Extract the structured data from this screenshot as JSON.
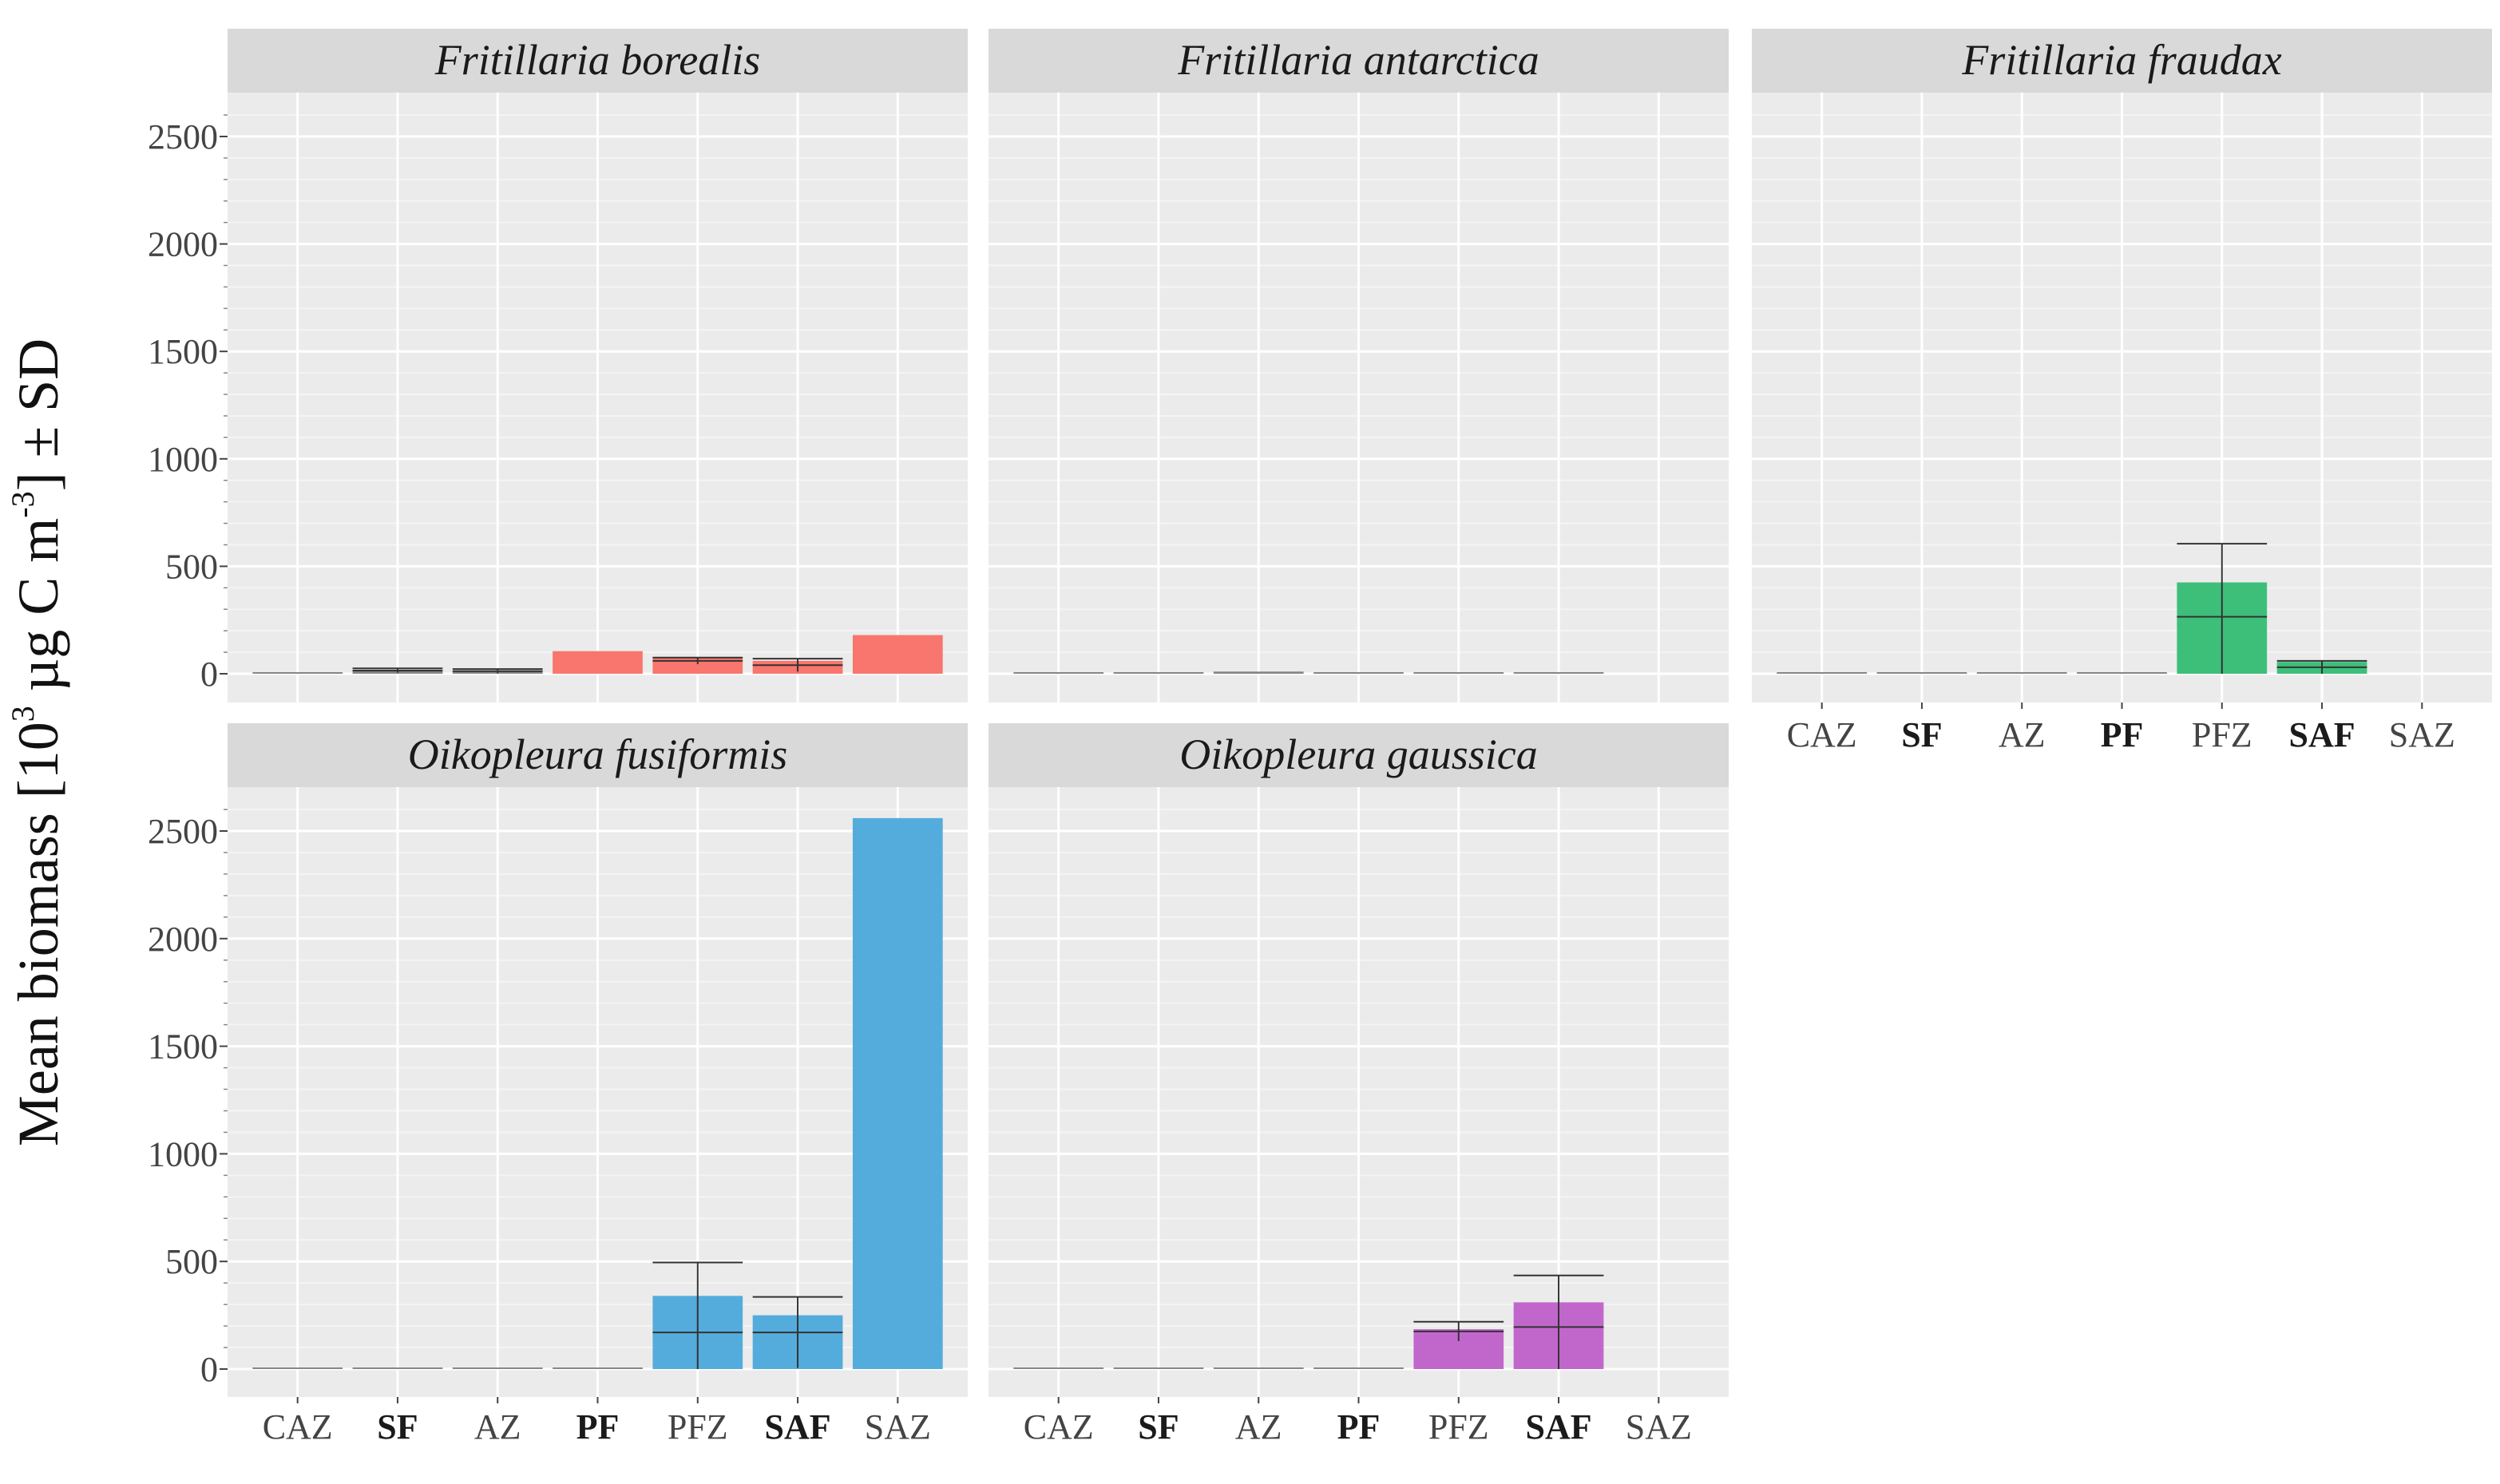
{
  "chart_data": {
    "type": "bar",
    "ylabel": {
      "main": "Mean biomass [10",
      "exp1": "3",
      "unit": " µg C m",
      "exp2": "-3",
      "tail": "]  ± SD"
    },
    "ylim": [
      0,
      2600
    ],
    "y_ticks": [
      0,
      500,
      1000,
      1500,
      2000,
      2500
    ],
    "y_tick_labels": [
      "0",
      "500",
      "1000",
      "1500",
      "2000",
      "2500"
    ],
    "categories": [
      "CAZ",
      "SF",
      "AZ",
      "PF",
      "PFZ",
      "SAF",
      "SAZ"
    ],
    "bold_categories": [
      "SF",
      "PF",
      "SAF"
    ],
    "panels": [
      {
        "title": "Fritillaria borealis",
        "color": "#f8766d",
        "values": [
          2,
          15,
          12,
          105,
          75,
          60,
          180
        ],
        "means": [
          2,
          15,
          12,
          105,
          60,
          40,
          180
        ],
        "sd": [
          0,
          10,
          10,
          0,
          15,
          30,
          0
        ]
      },
      {
        "title": "Fritillaria antarctica",
        "color": "#7f7f7f",
        "values": [
          2,
          2,
          10,
          2,
          2,
          2,
          null
        ],
        "means": [
          2,
          2,
          10,
          2,
          2,
          2,
          null
        ],
        "sd": [
          0,
          0,
          0,
          0,
          0,
          0,
          null
        ]
      },
      {
        "title": "Fritillaria fraudax",
        "color": "#3dbf7a",
        "values": [
          2,
          2,
          2,
          2,
          425,
          55,
          null
        ],
        "means": [
          2,
          2,
          2,
          2,
          265,
          30,
          null
        ],
        "sd": [
          0,
          0,
          0,
          0,
          340,
          30,
          null
        ]
      },
      {
        "title": "Oikopleura fusiformis",
        "color": "#54acdc",
        "values": [
          5,
          5,
          5,
          5,
          340,
          250,
          2560
        ],
        "means": [
          5,
          5,
          5,
          5,
          170,
          170,
          2560
        ],
        "sd": [
          0,
          0,
          0,
          0,
          325,
          165,
          0
        ]
      },
      {
        "title": "Oikopleura gaussica",
        "color": "#c167cc",
        "values": [
          5,
          5,
          5,
          5,
          185,
          310,
          null
        ],
        "means": [
          5,
          5,
          5,
          5,
          175,
          195,
          null
        ],
        "sd": [
          0,
          0,
          0,
          0,
          45,
          240,
          null
        ]
      }
    ]
  }
}
